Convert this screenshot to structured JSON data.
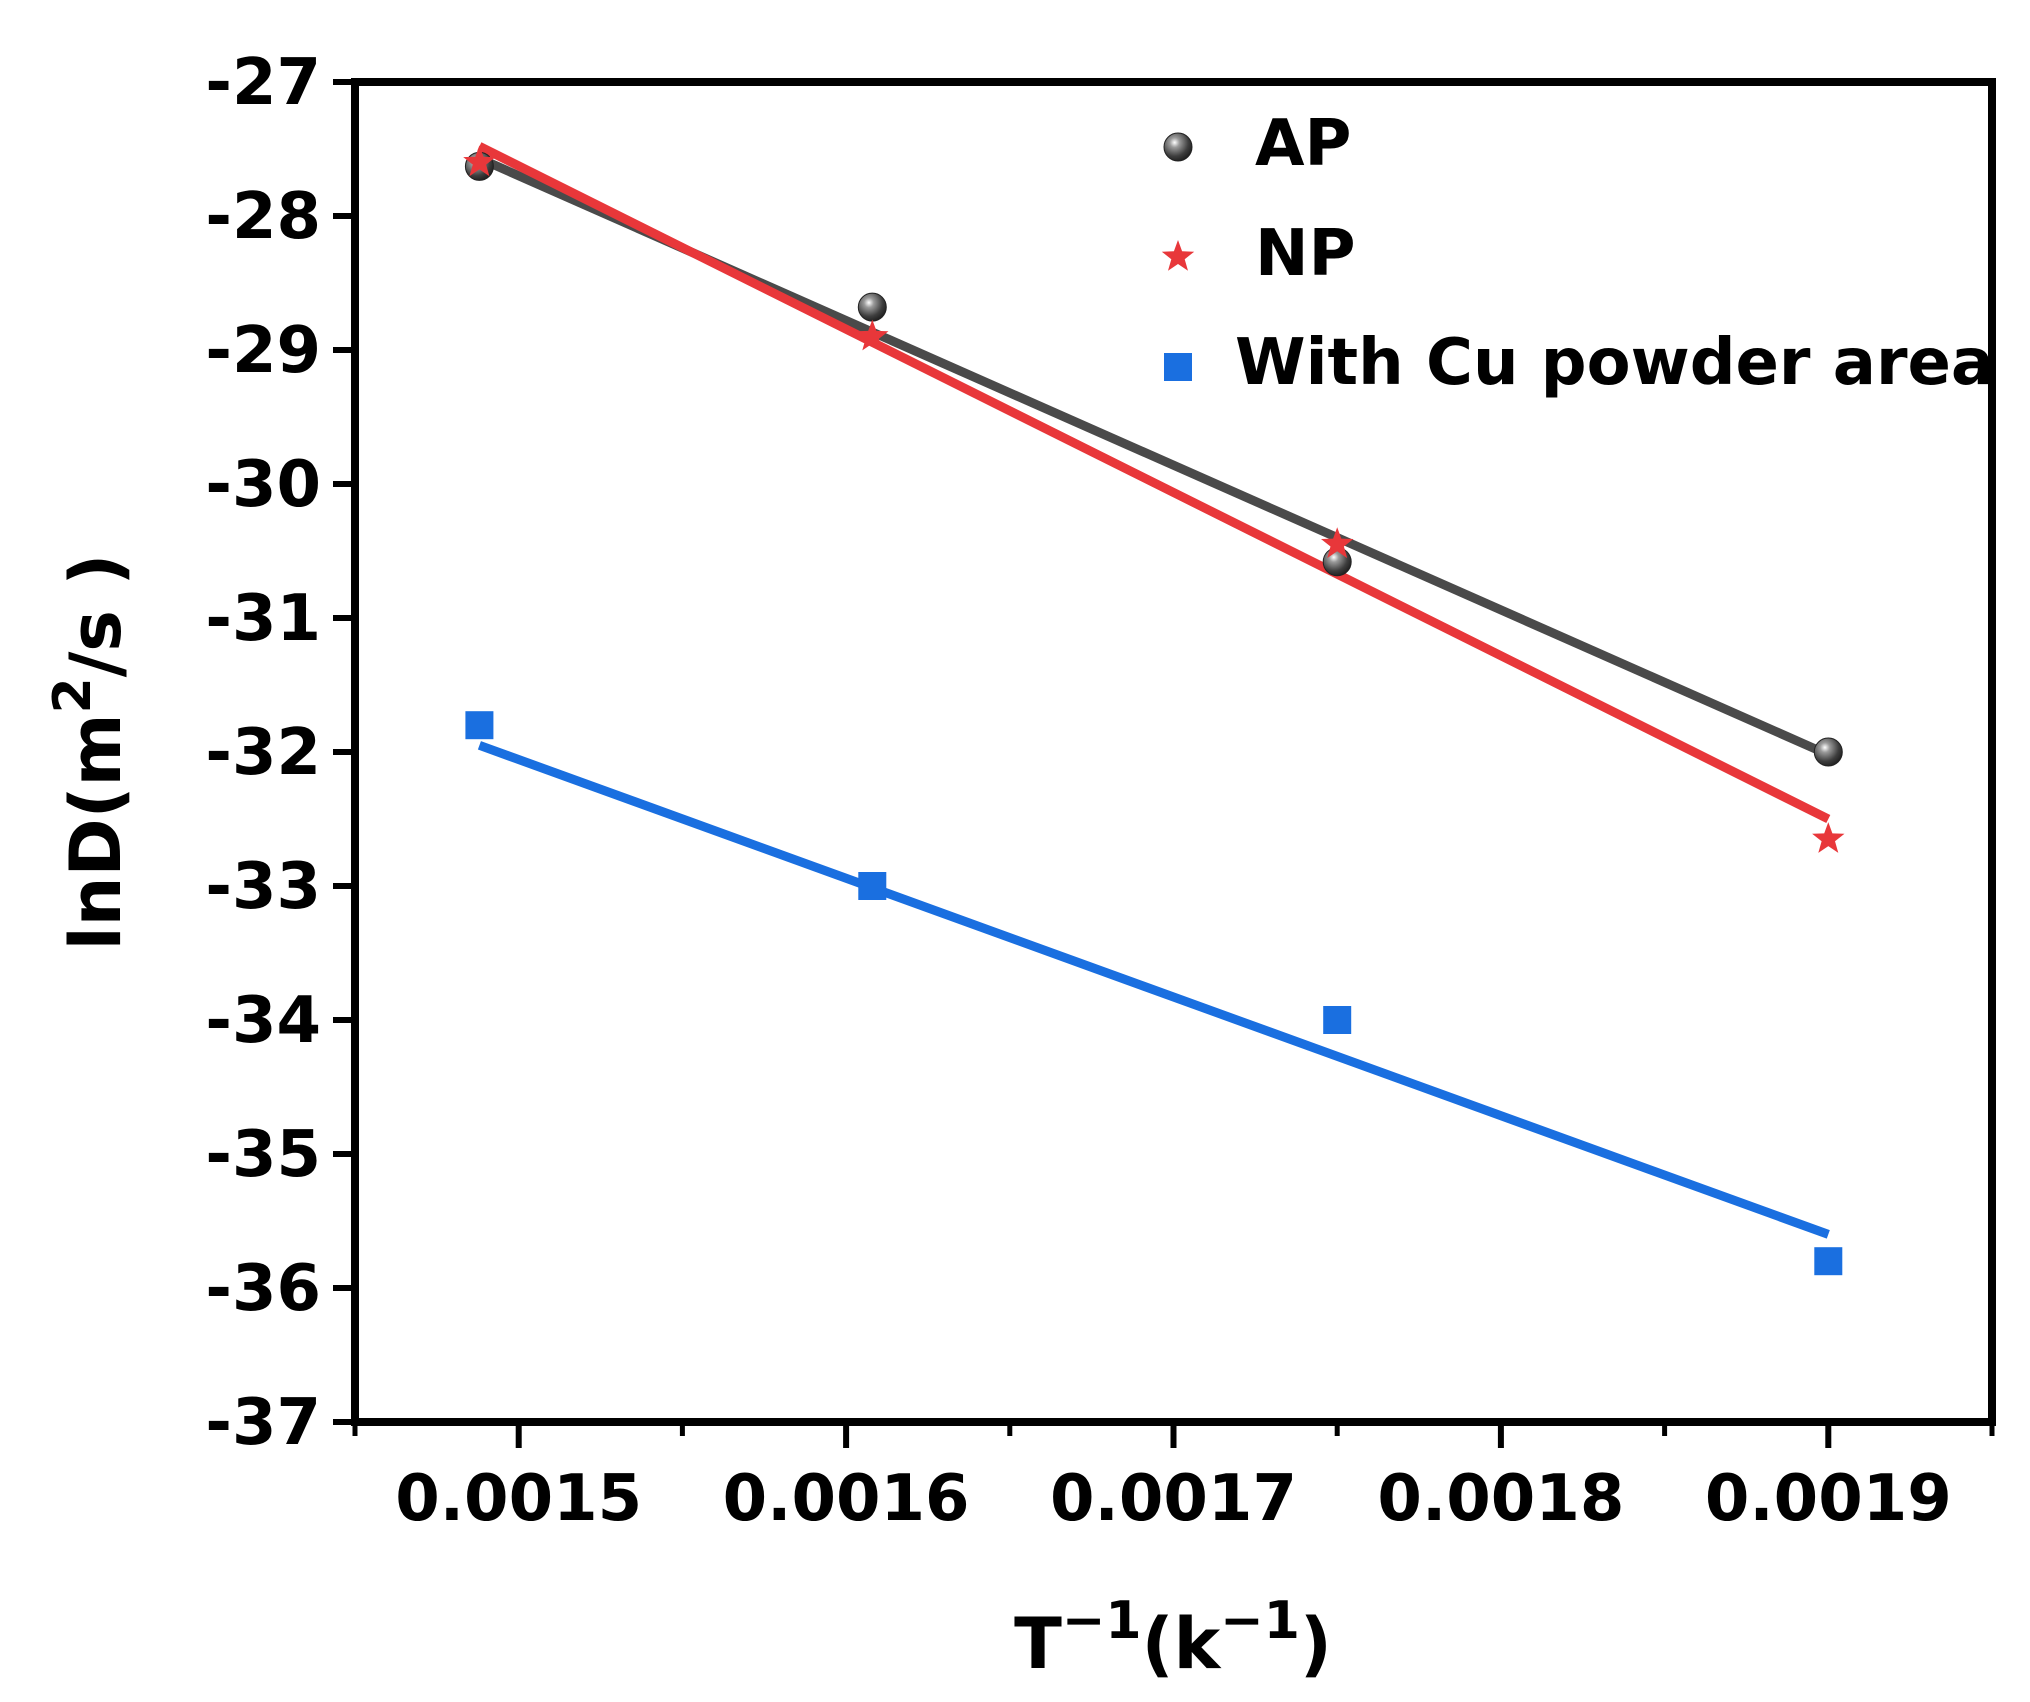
{
  "chart_data": {
    "type": "scatter",
    "title": "",
    "xlabel": {
      "base": "T",
      "exp": "−1",
      "mid": "(k",
      "exp2": "−1",
      "end": ")"
    },
    "ylabel": {
      "base": "lnD(m",
      "exp": "2",
      "end": "/s )"
    },
    "xlim": [
      0.00145,
      0.00195
    ],
    "ylim": [
      -37,
      -27
    ],
    "x_ticks": [
      0.0015,
      0.0016,
      0.0017,
      0.0018,
      0.0019
    ],
    "x_tick_labels": [
      "0.0015",
      "0.0016",
      "0.0017",
      "0.0018",
      "0.0019"
    ],
    "y_ticks": [
      -27,
      -28,
      -29,
      -30,
      -31,
      -32,
      -33,
      -34,
      -35,
      -36,
      -37
    ],
    "y_tick_labels": [
      "-27",
      "-28",
      "-29",
      "-30",
      "-31",
      "-32",
      "-33",
      "-34",
      "-35",
      "-36",
      "-37"
    ],
    "legend_position": "top-right",
    "series": [
      {
        "name": "AP",
        "marker": "sphere",
        "color": "#4a4a4a",
        "x": [
          0.001488,
          0.001608,
          0.00175,
          0.0019
        ],
        "y": [
          -27.63,
          -28.68,
          -30.58,
          -32.0
        ],
        "fit": {
          "x": [
            0.001488,
            0.0019
          ],
          "y": [
            -27.57,
            -32.02
          ]
        }
      },
      {
        "name": "NP",
        "marker": "star",
        "color": "#e8373a",
        "x": [
          0.001488,
          0.001608,
          0.00175,
          0.0019
        ],
        "y": [
          -27.6,
          -28.9,
          -30.45,
          -32.65
        ],
        "fit": {
          "x": [
            0.001488,
            0.0019
          ],
          "y": [
            -27.48,
            -32.5
          ]
        }
      },
      {
        "name": "With Cu powder area",
        "marker": "square",
        "color": "#1a6fe0",
        "x": [
          0.001488,
          0.001608,
          0.00175,
          0.0019
        ],
        "y": [
          -31.8,
          -33.0,
          -34.0,
          -35.8
        ],
        "fit": {
          "x": [
            0.001488,
            0.0019
          ],
          "y": [
            -31.95,
            -35.6
          ]
        }
      }
    ]
  }
}
